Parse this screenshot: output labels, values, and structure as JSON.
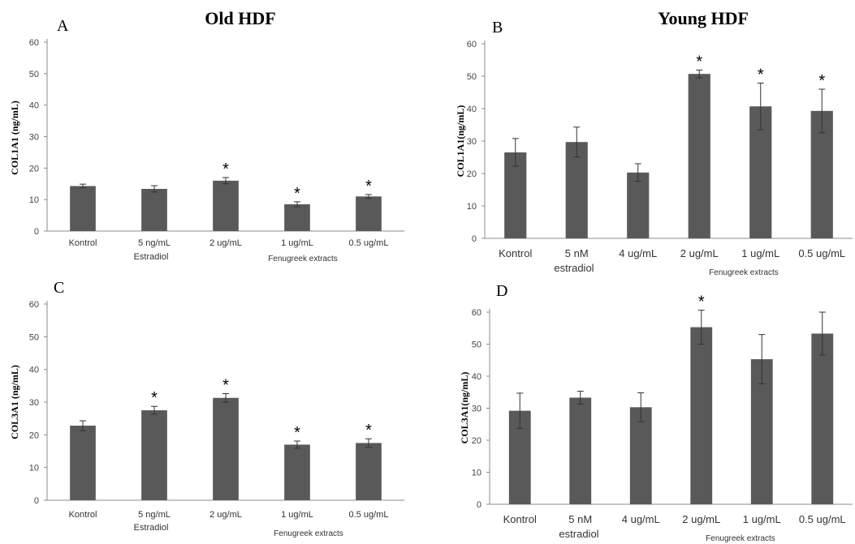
{
  "titles": {
    "old": "Old HDF",
    "young": "Young HDF"
  },
  "colors": {
    "bar": "#595959",
    "axis": "#8c8c8c",
    "error": "#333333"
  },
  "chart_data": [
    {
      "panel": "A",
      "type": "bar",
      "ylabel": "COL1A1 (ng/mL)",
      "ylim": [
        0,
        60
      ],
      "yticks": [
        0,
        10,
        20,
        30,
        40,
        50,
        60
      ],
      "categories": [
        "Kontrol",
        "5 ng/mL",
        "2 ug/mL",
        "1 ug/mL",
        "0.5 ug/mL"
      ],
      "values": [
        14.3,
        13.4,
        16.0,
        8.5,
        11.0
      ],
      "errors": [
        0.6,
        1.0,
        1.0,
        0.8,
        0.6
      ],
      "significant": [
        false,
        false,
        true,
        true,
        true
      ],
      "significance_marker": "*",
      "group_labels": [
        "Estradiol",
        "Fenugreek extracts"
      ]
    },
    {
      "panel": "B",
      "type": "bar",
      "ylabel": "COL1A1(ng/mL)",
      "ylim": [
        0,
        60
      ],
      "yticks": [
        0,
        10,
        20,
        30,
        40,
        50,
        60
      ],
      "categories": [
        "Kontrol",
        "5 nM",
        "4 ug/mL",
        "2 ug/mL",
        "1 ug/mL",
        "0.5 ug/mL"
      ],
      "values": [
        26.5,
        29.7,
        20.3,
        50.7,
        40.7,
        39.3
      ],
      "errors": [
        4.3,
        4.6,
        2.7,
        1.2,
        7.2,
        6.7
      ],
      "significant": [
        false,
        false,
        false,
        true,
        true,
        true
      ],
      "significance_marker": "*",
      "group_labels": [
        "estradiol",
        "Fenugreek extracts"
      ]
    },
    {
      "panel": "C",
      "type": "bar",
      "ylabel": "COL3A1 (ng/mL)",
      "ylim": [
        0,
        60
      ],
      "yticks": [
        0,
        10,
        20,
        30,
        40,
        50,
        60
      ],
      "categories": [
        "Kontrol",
        "5 ng/mL",
        "2 ug/mL",
        "1 ug/mL",
        "0.5 ug/mL"
      ],
      "values": [
        22.8,
        27.5,
        31.3,
        17.0,
        17.5
      ],
      "errors": [
        1.5,
        1.2,
        1.3,
        1.1,
        1.3
      ],
      "significant": [
        false,
        true,
        true,
        true,
        true
      ],
      "significance_marker": "*",
      "group_labels": [
        "Estradiol",
        "Fenugreek extracts"
      ]
    },
    {
      "panel": "D",
      "type": "bar",
      "ylabel": "COL3A1(ng/mL)",
      "ylim": [
        0,
        60
      ],
      "yticks": [
        0,
        10,
        20,
        30,
        40,
        50,
        60
      ],
      "categories": [
        "Kontrol",
        "5 nM",
        "4 ug/mL",
        "2 ug/mL",
        "1 ug/mL",
        "0.5 ug/mL"
      ],
      "values": [
        29.2,
        33.3,
        30.3,
        55.3,
        45.3,
        53.3
      ],
      "errors": [
        5.5,
        2.0,
        4.5,
        5.3,
        7.7,
        6.7
      ],
      "significant": [
        false,
        false,
        false,
        true,
        false,
        false
      ],
      "significance_marker": "*",
      "group_labels": [
        "estradiol",
        "Fenugreek extracts"
      ]
    }
  ]
}
